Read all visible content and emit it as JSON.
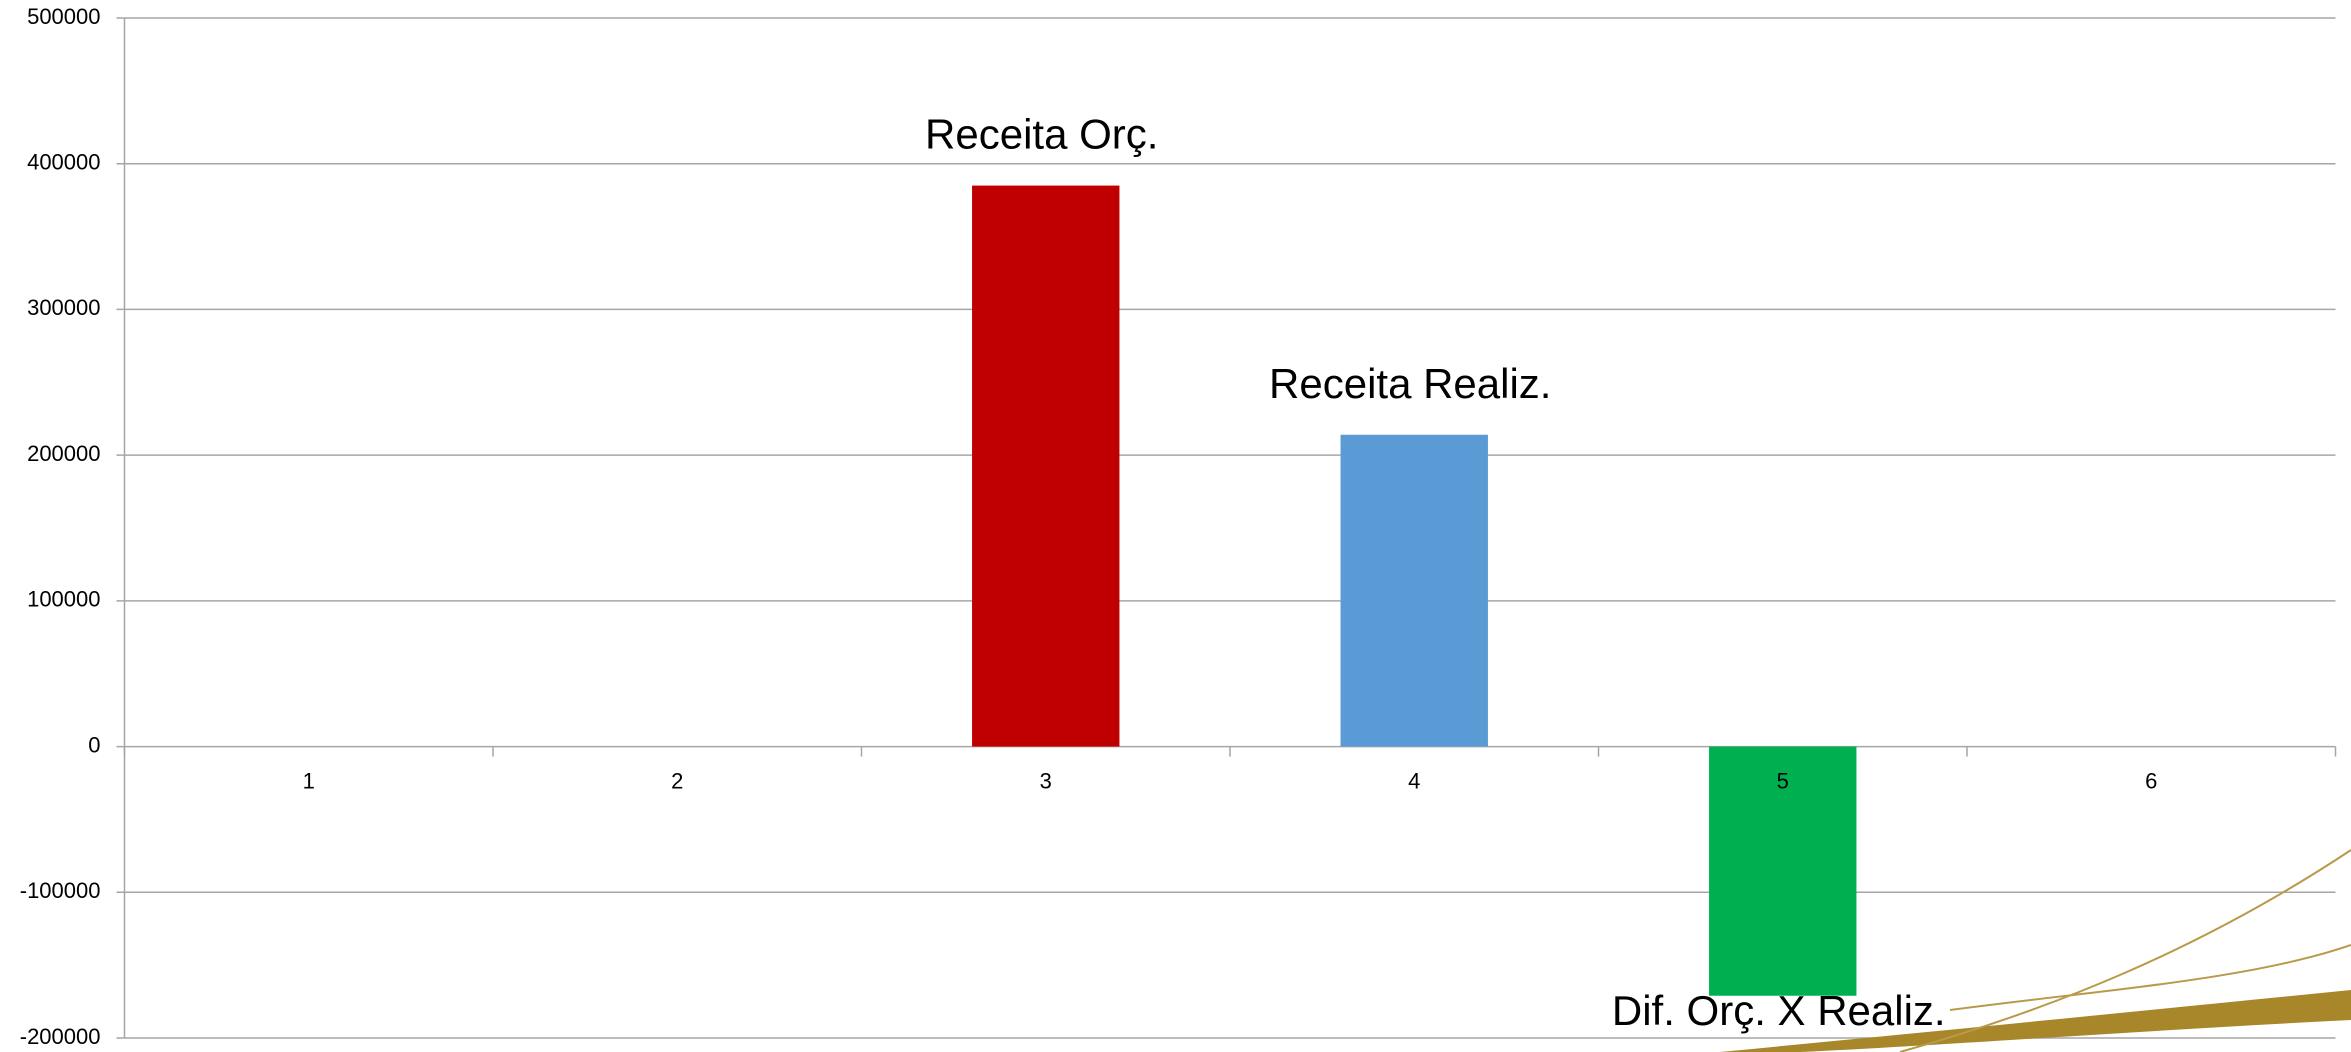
{
  "chart_data": {
    "type": "bar",
    "categories": [
      "1",
      "2",
      "3",
      "4",
      "5",
      "6"
    ],
    "values": [
      null,
      null,
      385000,
      214000,
      -171000,
      null
    ],
    "colors": [
      null,
      null,
      "#c00000",
      "#5b9bd5",
      "#00b050",
      null
    ],
    "bar_labels": [
      null,
      null,
      "Receita Orç.",
      "Receita Realiz.",
      "Dif. Orç. X Realiz.",
      null
    ],
    "ylim": [
      -200000,
      500000
    ],
    "yticks": [
      -200000,
      -100000,
      0,
      100000,
      200000,
      300000,
      400000,
      500000
    ],
    "grid": true
  }
}
